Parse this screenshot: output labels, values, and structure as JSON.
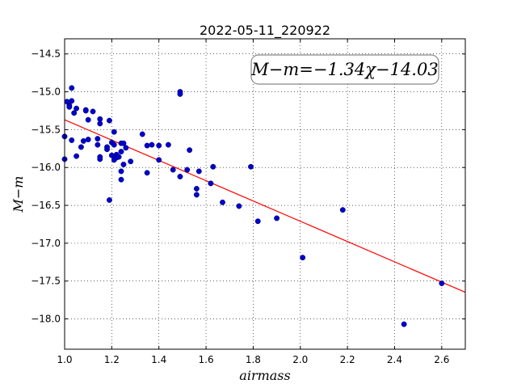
{
  "chart_data": {
    "type": "scatter",
    "title": "2022-05-11_220922",
    "xlabel": "airmass",
    "ylabel": "M−m",
    "xlim": [
      1.0,
      2.7
    ],
    "ylim": [
      -18.4,
      -14.3
    ],
    "y_inverted": true,
    "grid": true,
    "x_ticks": [
      "1.0",
      "1.2",
      "1.4",
      "1.6",
      "1.8",
      "2.0",
      "2.2",
      "2.4",
      "2.6"
    ],
    "y_ticks": [
      "−14.5",
      "−15.0",
      "−15.5",
      "−16.0",
      "−16.5",
      "−17.0",
      "−17.5",
      "−18.0"
    ],
    "annotation": "M−m=−1.34χ−14.03",
    "fit_line": {
      "slope": -1.34,
      "intercept": -14.03,
      "color": "#ff0000"
    },
    "point_color": "#0000cc",
    "points": [
      [
        1.0,
        -15.59
      ],
      [
        1.0,
        -15.89
      ],
      [
        1.01,
        -15.13
      ],
      [
        1.02,
        -15.18
      ],
      [
        1.02,
        -15.2
      ],
      [
        1.03,
        -15.12
      ],
      [
        1.03,
        -14.95
      ],
      [
        1.03,
        -15.64
      ],
      [
        1.04,
        -15.28
      ],
      [
        1.05,
        -15.22
      ],
      [
        1.05,
        -15.85
      ],
      [
        1.07,
        -15.73
      ],
      [
        1.08,
        -15.65
      ],
      [
        1.09,
        -15.24
      ],
      [
        1.09,
        -15.25
      ],
      [
        1.1,
        -15.63
      ],
      [
        1.1,
        -15.37
      ],
      [
        1.12,
        -15.26
      ],
      [
        1.14,
        -15.62
      ],
      [
        1.14,
        -15.7
      ],
      [
        1.15,
        -15.86
      ],
      [
        1.15,
        -15.89
      ],
      [
        1.15,
        -15.36
      ],
      [
        1.15,
        -15.42
      ],
      [
        1.18,
        -15.73
      ],
      [
        1.18,
        -15.76
      ],
      [
        1.19,
        -15.38
      ],
      [
        1.19,
        -16.43
      ],
      [
        1.2,
        -15.67
      ],
      [
        1.2,
        -15.84
      ],
      [
        1.21,
        -15.53
      ],
      [
        1.21,
        -15.9
      ],
      [
        1.21,
        -15.7
      ],
      [
        1.22,
        -15.83
      ],
      [
        1.22,
        -15.87
      ],
      [
        1.23,
        -15.86
      ],
      [
        1.24,
        -15.79
      ],
      [
        1.24,
        -15.68
      ],
      [
        1.24,
        -16.05
      ],
      [
        1.24,
        -16.16
      ],
      [
        1.25,
        -15.96
      ],
      [
        1.25,
        -15.68
      ],
      [
        1.26,
        -15.74
      ],
      [
        1.28,
        -15.92
      ],
      [
        1.33,
        -15.56
      ],
      [
        1.35,
        -15.71
      ],
      [
        1.35,
        -16.07
      ],
      [
        1.37,
        -15.7
      ],
      [
        1.4,
        -15.71
      ],
      [
        1.4,
        -15.9
      ],
      [
        1.44,
        -15.7
      ],
      [
        1.46,
        -16.03
      ],
      [
        1.49,
        -15.0
      ],
      [
        1.49,
        -15.03
      ],
      [
        1.49,
        -16.12
      ],
      [
        1.52,
        -16.03
      ],
      [
        1.53,
        -15.77
      ],
      [
        1.56,
        -16.28
      ],
      [
        1.56,
        -16.36
      ],
      [
        1.57,
        -16.05
      ],
      [
        1.62,
        -16.21
      ],
      [
        1.63,
        -15.99
      ],
      [
        1.67,
        -16.46
      ],
      [
        1.74,
        -16.51
      ],
      [
        1.79,
        -15.99
      ],
      [
        1.82,
        -16.71
      ],
      [
        1.9,
        -16.67
      ],
      [
        2.01,
        -17.19
      ],
      [
        2.18,
        -16.56
      ],
      [
        2.44,
        -18.07
      ],
      [
        2.6,
        -17.53
      ]
    ]
  }
}
